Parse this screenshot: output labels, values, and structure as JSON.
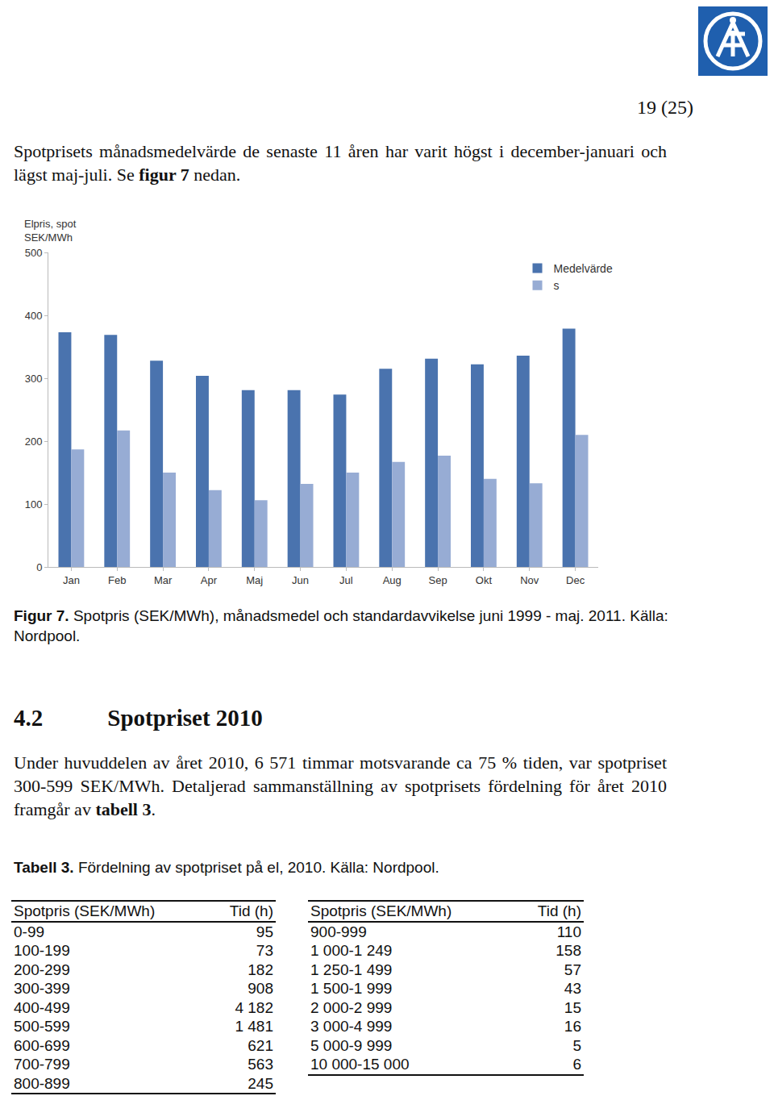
{
  "page_number": "19 (25)",
  "intro": {
    "before": "Spotprisets månadsmedelvärde de senaste 11 åren har varit högst i december-januari och lägst maj-juli. Se ",
    "bold": "figur 7",
    "after": " nedan."
  },
  "chart_data": {
    "type": "bar",
    "y_label": [
      "Elpris, spot",
      "SEK/MWh"
    ],
    "categories": [
      "Jan",
      "Feb",
      "Mar",
      "Apr",
      "Maj",
      "Jun",
      "Jul",
      "Aug",
      "Sep",
      "Okt",
      "Nov",
      "Dec"
    ],
    "series": [
      {
        "name": "Medelvärde",
        "color": "#4a73ae",
        "values": [
          373,
          369,
          328,
          304,
          281,
          281,
          274,
          315,
          331,
          322,
          336,
          379
        ]
      },
      {
        "name": "s",
        "color": "#97acd4",
        "values": [
          187,
          217,
          150,
          122,
          106,
          132,
          150,
          167,
          177,
          140,
          133,
          210
        ]
      }
    ],
    "ylim": [
      0,
      500
    ],
    "yticks": [
      0,
      100,
      200,
      300,
      400,
      500
    ],
    "grid": false,
    "legend": "top right"
  },
  "figure_caption": {
    "bold": "Figur 7.",
    "text": " Spotpris (SEK/MWh), månadsmedel och standardavvikelse juni 1999 - maj. 2011. Källa: Nordpool."
  },
  "heading": {
    "number": "4.2",
    "text": "Spotpriset 2010"
  },
  "paragraph2": {
    "before": "Under huvuddelen av året 2010, 6 571 timmar motsvarande ca 75 % tiden, var spotpriset 300-599 SEK/MWh. Detaljerad sammanställning av spotprisets fördelning för året 2010 framgår av ",
    "bold": "tabell 3",
    "after": "."
  },
  "table_caption": {
    "bold": "Tabell 3.",
    "text": " Fördelning av spotpriset på el, 2010. Källa: Nordpool."
  },
  "table": {
    "header": [
      "Spotpris (SEK/MWh)",
      "Tid (h)"
    ],
    "left_rows": [
      [
        "0-99",
        "95"
      ],
      [
        "100-199",
        "73"
      ],
      [
        "200-299",
        "182"
      ],
      [
        "300-399",
        "908"
      ],
      [
        "400-499",
        "4 182"
      ],
      [
        "500-599",
        "1 481"
      ],
      [
        "600-699",
        "621"
      ],
      [
        "700-799",
        "563"
      ],
      [
        "800-899",
        "245"
      ]
    ],
    "right_rows": [
      [
        "900-999",
        "110"
      ],
      [
        "1 000-1 249",
        "158"
      ],
      [
        "1 250-1 499",
        "57"
      ],
      [
        "1 500-1 999",
        "43"
      ],
      [
        "2 000-2 999",
        "15"
      ],
      [
        "3 000-4 999",
        "16"
      ],
      [
        "5 000-9 999",
        "5"
      ],
      [
        "10 000-15 000",
        "6"
      ]
    ]
  }
}
